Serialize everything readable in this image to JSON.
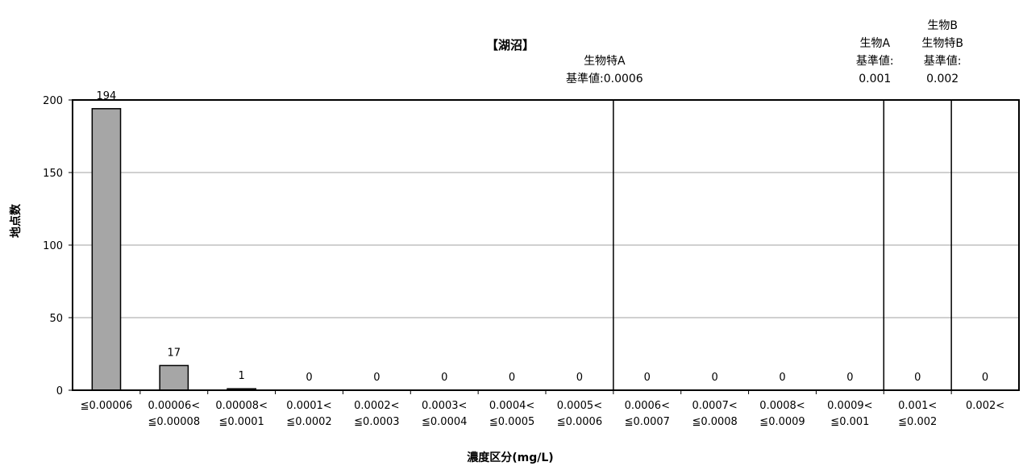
{
  "chart_data": {
    "type": "bar",
    "title": "【湖沼】",
    "xlabel": "濃度区分(mg/L)",
    "ylabel": "地点数",
    "ylim": [
      0,
      200
    ],
    "yticks": [
      0,
      50,
      100,
      150,
      200
    ],
    "grid": true,
    "categories": [
      [
        "≦0.00006"
      ],
      [
        "0.00006<",
        "≦0.00008"
      ],
      [
        "0.00008<",
        "≦0.0001"
      ],
      [
        "0.0001<",
        "≦0.0002"
      ],
      [
        "0.0002<",
        "≦0.0003"
      ],
      [
        "0.0003<",
        "≦0.0004"
      ],
      [
        "0.0004<",
        "≦0.0005"
      ],
      [
        "0.0005<",
        "≦0.0006"
      ],
      [
        "0.0006<",
        "≦0.0007"
      ],
      [
        "0.0007<",
        "≦0.0008"
      ],
      [
        "0.0008<",
        "≦0.0009"
      ],
      [
        "0.0009<",
        "≦0.001"
      ],
      [
        "0.001<",
        "≦0.002"
      ],
      [
        "0.002<"
      ]
    ],
    "values": [
      194,
      17,
      1,
      0,
      0,
      0,
      0,
      0,
      0,
      0,
      0,
      0,
      0,
      0
    ],
    "bar_color": "#a6a6a6",
    "reference_lines": [
      {
        "after_category": 7,
        "label": [
          "生物特A",
          "基準値:0.0006"
        ]
      },
      {
        "after_category": 11,
        "label": [
          "生物A",
          "基準値:",
          "0.001"
        ]
      },
      {
        "after_category": 12,
        "label": [
          "生物B",
          "生物特B",
          "基準値:",
          "0.002"
        ]
      }
    ]
  }
}
